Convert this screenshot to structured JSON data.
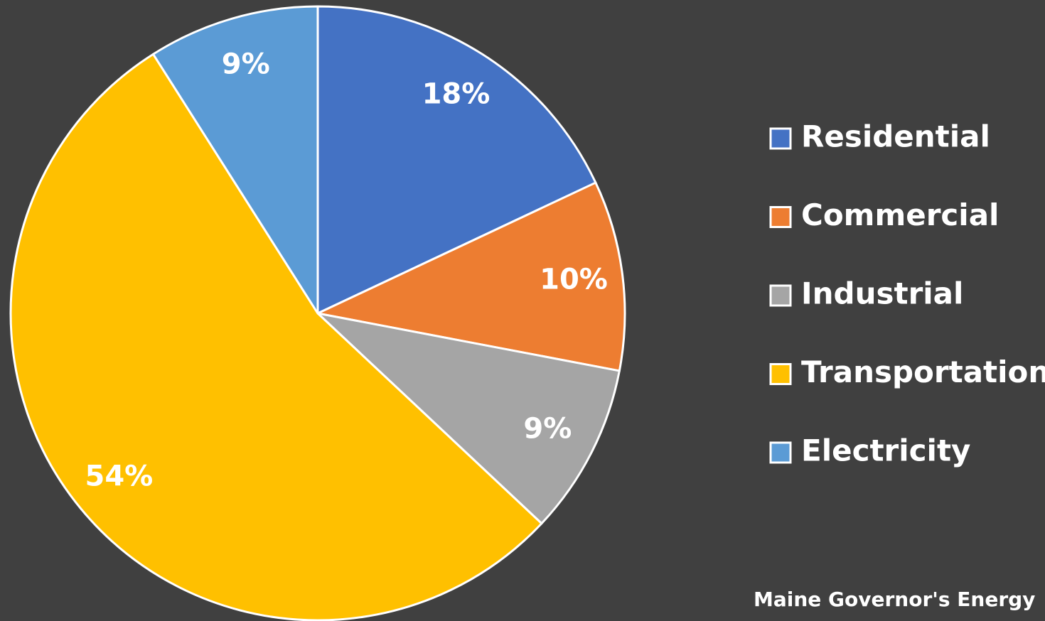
{
  "chart_data": {
    "type": "pie",
    "categories": [
      "Residential",
      "Commercial",
      "Industrial",
      "Transportation",
      "Electricity"
    ],
    "values": [
      18,
      10,
      9,
      54,
      9
    ],
    "value_labels": [
      "18%",
      "10%",
      "9%",
      "54%",
      "9%"
    ],
    "colors": [
      "#4472c4",
      "#ed7d31",
      "#a5a5a5",
      "#ffc000",
      "#5b9bd5"
    ],
    "legend": "right",
    "source": "Maine Governor's Energy"
  }
}
